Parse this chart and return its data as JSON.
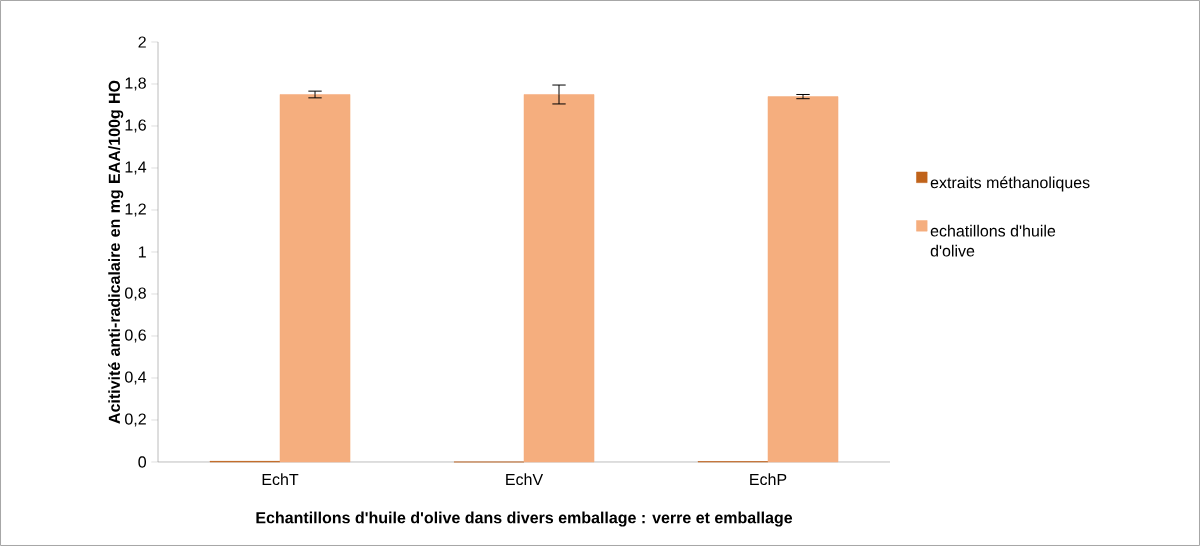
{
  "chart_data": {
    "type": "bar",
    "xlabel": "Echantillons d'huile d'olive dans divers emballage : verre et emballage",
    "ylabel": "Acitivité anti-radicalaire en mg EAA/100g HO",
    "categories": [
      "EchT",
      "EchV",
      "EchP"
    ],
    "series": [
      {
        "name": "extraits méthanoliques",
        "color": "#c0631a",
        "values": [
          0.003,
          0,
          0.002
        ]
      },
      {
        "name": " echatillons d'huile d'olive",
        "color": "#f5ae7e",
        "values": [
          1.75,
          1.75,
          1.74
        ],
        "errors": [
          0.016,
          0.045,
          0.01
        ]
      }
    ],
    "ylim": [
      0,
      2
    ],
    "yticks": [
      0,
      {
        "value": 0.2,
        "label": "0,2"
      },
      {
        "value": 0.4,
        "label": "0,4"
      },
      {
        "value": 0.6,
        "label": "0,6"
      },
      {
        "value": 0.8,
        "label": "0,8"
      },
      1,
      {
        "value": 1.2,
        "label": "1,2"
      },
      {
        "value": 1.4,
        "label": "1,4"
      },
      {
        "value": 1.6,
        "label": "1,6"
      },
      {
        "value": 1.8,
        "label": "1,8"
      },
      2
    ],
    "legend": "right",
    "grid": false
  }
}
